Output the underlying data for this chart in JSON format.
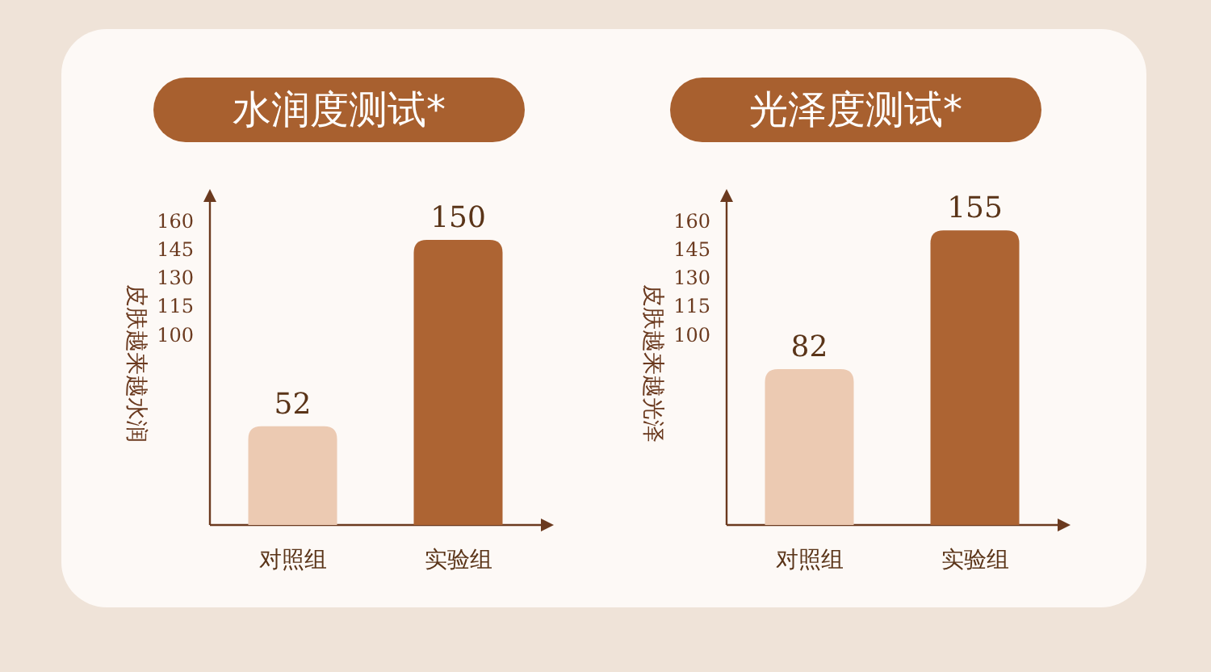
{
  "chart_data": [
    {
      "type": "bar",
      "title": "水润度测试*",
      "ylabel": "皮肤越来越水润",
      "categories": [
        "对照组",
        "实验组"
      ],
      "values": [
        52,
        150
      ],
      "colors": [
        "#eccab2",
        "#ad6433"
      ],
      "ylim": [
        0,
        170
      ],
      "yticks": [
        100,
        115,
        130,
        145,
        160
      ],
      "data_labels": true
    },
    {
      "type": "bar",
      "title": "光泽度测试*",
      "ylabel": "皮肤越来越光泽",
      "categories": [
        "对照组",
        "实验组"
      ],
      "values": [
        82,
        155
      ],
      "colors": [
        "#eccab2",
        "#ad6433"
      ],
      "ylim": [
        0,
        170
      ],
      "yticks": [
        100,
        115,
        130,
        145,
        160
      ],
      "data_labels": true
    }
  ]
}
